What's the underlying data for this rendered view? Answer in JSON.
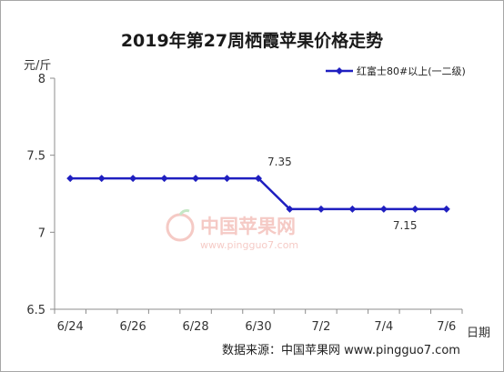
{
  "chart_data": {
    "type": "line",
    "title": "2019年第27周栖霞苹果价格走势",
    "ylabel": "元/斤",
    "xlabel": "日期",
    "ylim": [
      6.5,
      8
    ],
    "yticks": [
      "8",
      "7.5",
      "7",
      "6.5"
    ],
    "ytick_values": [
      8,
      7.5,
      7,
      6.5
    ],
    "x": [
      "6/24",
      "6/25",
      "6/26",
      "6/27",
      "6/28",
      "6/29",
      "6/30",
      "7/1",
      "7/2",
      "7/3",
      "7/4",
      "7/5",
      "7/6"
    ],
    "xtick_labels": [
      "6/24",
      "",
      "6/26",
      "",
      "6/28",
      "",
      "6/30",
      "",
      "7/2",
      "",
      "7/4",
      "",
      "7/6"
    ],
    "series": [
      {
        "name": "红富士80#以上(一二级)",
        "values": [
          7.35,
          7.35,
          7.35,
          7.35,
          7.35,
          7.35,
          7.35,
          7.15,
          7.15,
          7.15,
          7.15,
          7.15,
          7.15
        ]
      }
    ],
    "annotations": [
      {
        "index": 6,
        "text": "7.35"
      },
      {
        "index": 10,
        "text": "7.15"
      }
    ],
    "legend_position": "top-right",
    "grid": false,
    "line_color": "#1f1fc0"
  },
  "source_text": "数据来源：中国苹果网 www.pingguo7.com",
  "watermark": {
    "cn": "中国苹果网",
    "url": "www.pingguo7.com"
  }
}
